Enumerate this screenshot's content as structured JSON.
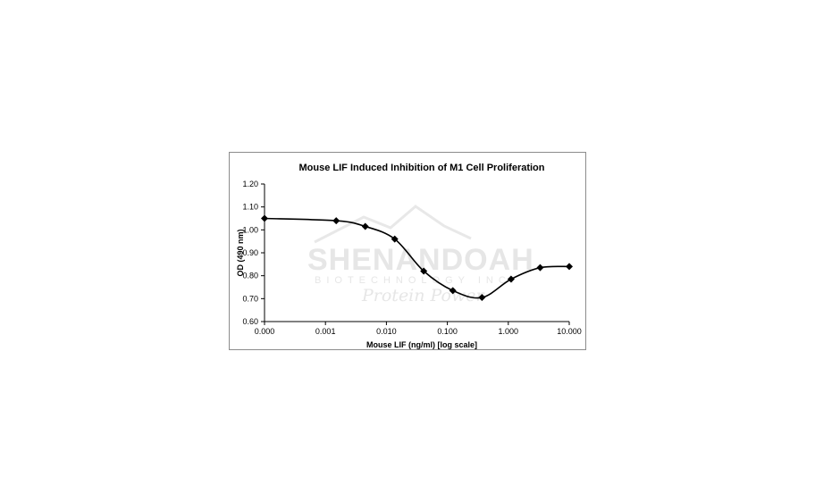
{
  "watermark": {
    "brand": "SHENANDOAH",
    "line2": "BIOTECHNOLOGY INC.",
    "script": "Protein Power"
  },
  "chart_data": {
    "type": "line",
    "title": "Mouse LIF Induced Inhibition of M1 Cell Proliferation",
    "xlabel": "Mouse LIF (ng/ml) [log scale]",
    "ylabel": "OD (490 nm)",
    "x_scale": "log",
    "xlim": [
      0.0001,
      10
    ],
    "ylim": [
      0.6,
      1.2
    ],
    "x_ticks": [
      0.0001,
      0.001,
      0.01,
      0.1,
      1,
      10
    ],
    "x_tick_labels": [
      "0.000",
      "0.001",
      "0.010",
      "0.100",
      "1.000",
      "10.000"
    ],
    "y_ticks": [
      0.6,
      0.7,
      0.8,
      0.9,
      1.0,
      1.1,
      1.2
    ],
    "y_tick_labels": [
      "0.60",
      "0.70",
      "0.80",
      "0.90",
      "1.00",
      "1.10",
      "1.20"
    ],
    "grid": false,
    "legend": "none",
    "line_color": "#000000",
    "marker": "diamond",
    "series": [
      {
        "x": [
          0.0001,
          0.0015,
          0.0045,
          0.0137,
          0.041,
          0.123,
          0.37,
          1.11,
          3.33,
          10
        ],
        "y": [
          1.05,
          1.04,
          1.015,
          0.96,
          0.82,
          0.735,
          0.705,
          0.785,
          0.835,
          0.84
        ]
      }
    ]
  }
}
